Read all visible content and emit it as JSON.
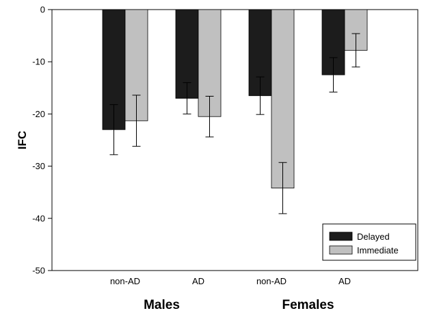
{
  "chart_data": {
    "type": "bar",
    "title": "",
    "xlabel": "",
    "ylabel": "IFC",
    "ylim": [
      -50,
      0
    ],
    "yticks": [
      0,
      -10,
      -20,
      -30,
      -40,
      -50
    ],
    "categories": [
      "non-AD",
      "AD",
      "non-AD",
      "AD"
    ],
    "groups": [
      {
        "label": "Males",
        "categories": [
          "non-AD",
          "AD"
        ]
      },
      {
        "label": "Females",
        "categories": [
          "non-AD",
          "AD"
        ]
      }
    ],
    "series": [
      {
        "name": "Delayed",
        "color": "#1c1c1c",
        "values": [
          -23.0,
          -17.0,
          -16.5,
          -12.5
        ],
        "errors": [
          4.8,
          3.0,
          3.6,
          3.3
        ]
      },
      {
        "name": "Immediate",
        "color": "#c0c0c0",
        "values": [
          -21.3,
          -20.5,
          -34.2,
          -7.8
        ],
        "errors": [
          4.9,
          3.9,
          4.9,
          3.2
        ]
      }
    ],
    "legend": {
      "position": "bottom-right"
    },
    "grid": false
  }
}
